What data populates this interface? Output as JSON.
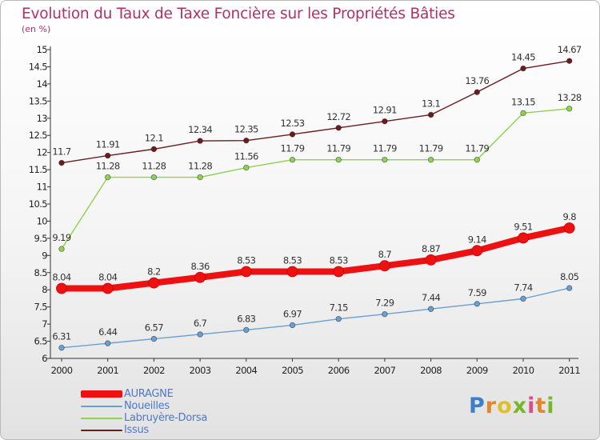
{
  "title": "Evolution du Taux de Taxe Foncière sur les Propriétés Bâties",
  "subtitle": "(en %)",
  "logo": {
    "letters": [
      "P",
      "r",
      "o",
      "x",
      "i",
      "t",
      "i"
    ],
    "colors": [
      "#3a7fc8",
      "#e2862b",
      "#e0bf2a",
      "#78b62a",
      "#d94d8a",
      "#e2862b",
      "#78b62a"
    ]
  },
  "chart_data": {
    "type": "line",
    "x": [
      "2000",
      "2001",
      "2002",
      "2003",
      "2004",
      "2005",
      "2006",
      "2007",
      "2008",
      "2009",
      "2010",
      "2011"
    ],
    "ylim": [
      6,
      15
    ],
    "yticks": [
      "6",
      "6.5",
      "7",
      "7.5",
      "8",
      "8.5",
      "9",
      "9.5",
      "10",
      "10.5",
      "11",
      "11.5",
      "12",
      "12.5",
      "13",
      "13.5",
      "14",
      "14.5",
      "15"
    ],
    "grid": false,
    "legend_position": "bottom-left",
    "series": [
      {
        "name": "Issus",
        "color": "#6b1d1d",
        "values": [
          11.7,
          11.91,
          12.1,
          12.34,
          12.35,
          12.53,
          12.72,
          12.91,
          13.1,
          13.76,
          14.45,
          14.67
        ],
        "labels": [
          "11.7",
          "11.91",
          "12.1",
          "12.34",
          "12.35",
          "12.53",
          "12.72",
          "12.91",
          "13.1",
          "13.76",
          "14.45",
          "14.67"
        ]
      },
      {
        "name": "Labruyère-Dorsa",
        "color": "#8fd150",
        "values": [
          9.19,
          11.28,
          11.28,
          11.28,
          11.56,
          11.79,
          11.79,
          11.79,
          11.79,
          11.79,
          13.15,
          13.28
        ],
        "labels": [
          "9.19",
          "11.28",
          "11.28",
          "11.28",
          "11.56",
          "11.79",
          "11.79",
          "11.79",
          "11.79",
          "11.79",
          "13.15",
          "13.28"
        ]
      },
      {
        "name": "AURAGNE",
        "color": "#ee1111",
        "values": [
          8.04,
          8.04,
          8.2,
          8.36,
          8.53,
          8.53,
          8.53,
          8.7,
          8.87,
          9.14,
          9.51,
          9.8
        ],
        "labels": [
          "8.04",
          "8.04",
          "8.2",
          "8.36",
          "8.53",
          "8.53",
          "8.53",
          "8.7",
          "8.87",
          "9.14",
          "9.51",
          "9.8"
        ]
      },
      {
        "name": "Noueilles",
        "color": "#6a9fd0",
        "values": [
          6.31,
          6.44,
          6.57,
          6.7,
          6.83,
          6.97,
          7.15,
          7.29,
          7.44,
          7.59,
          7.74,
          8.05
        ],
        "labels": [
          "6.31",
          "6.44",
          "6.57",
          "6.7",
          "6.83",
          "6.97",
          "7.15",
          "7.29",
          "7.44",
          "7.59",
          "7.74",
          "8.05"
        ]
      }
    ],
    "legend": [
      {
        "name": "AURAGNE",
        "color": "#ee1111"
      },
      {
        "name": "Noueilles",
        "color": "#6a9fd0"
      },
      {
        "name": "Labruyère-Dorsa",
        "color": "#8fd150"
      },
      {
        "name": "Issus",
        "color": "#6b1d1d"
      }
    ]
  }
}
